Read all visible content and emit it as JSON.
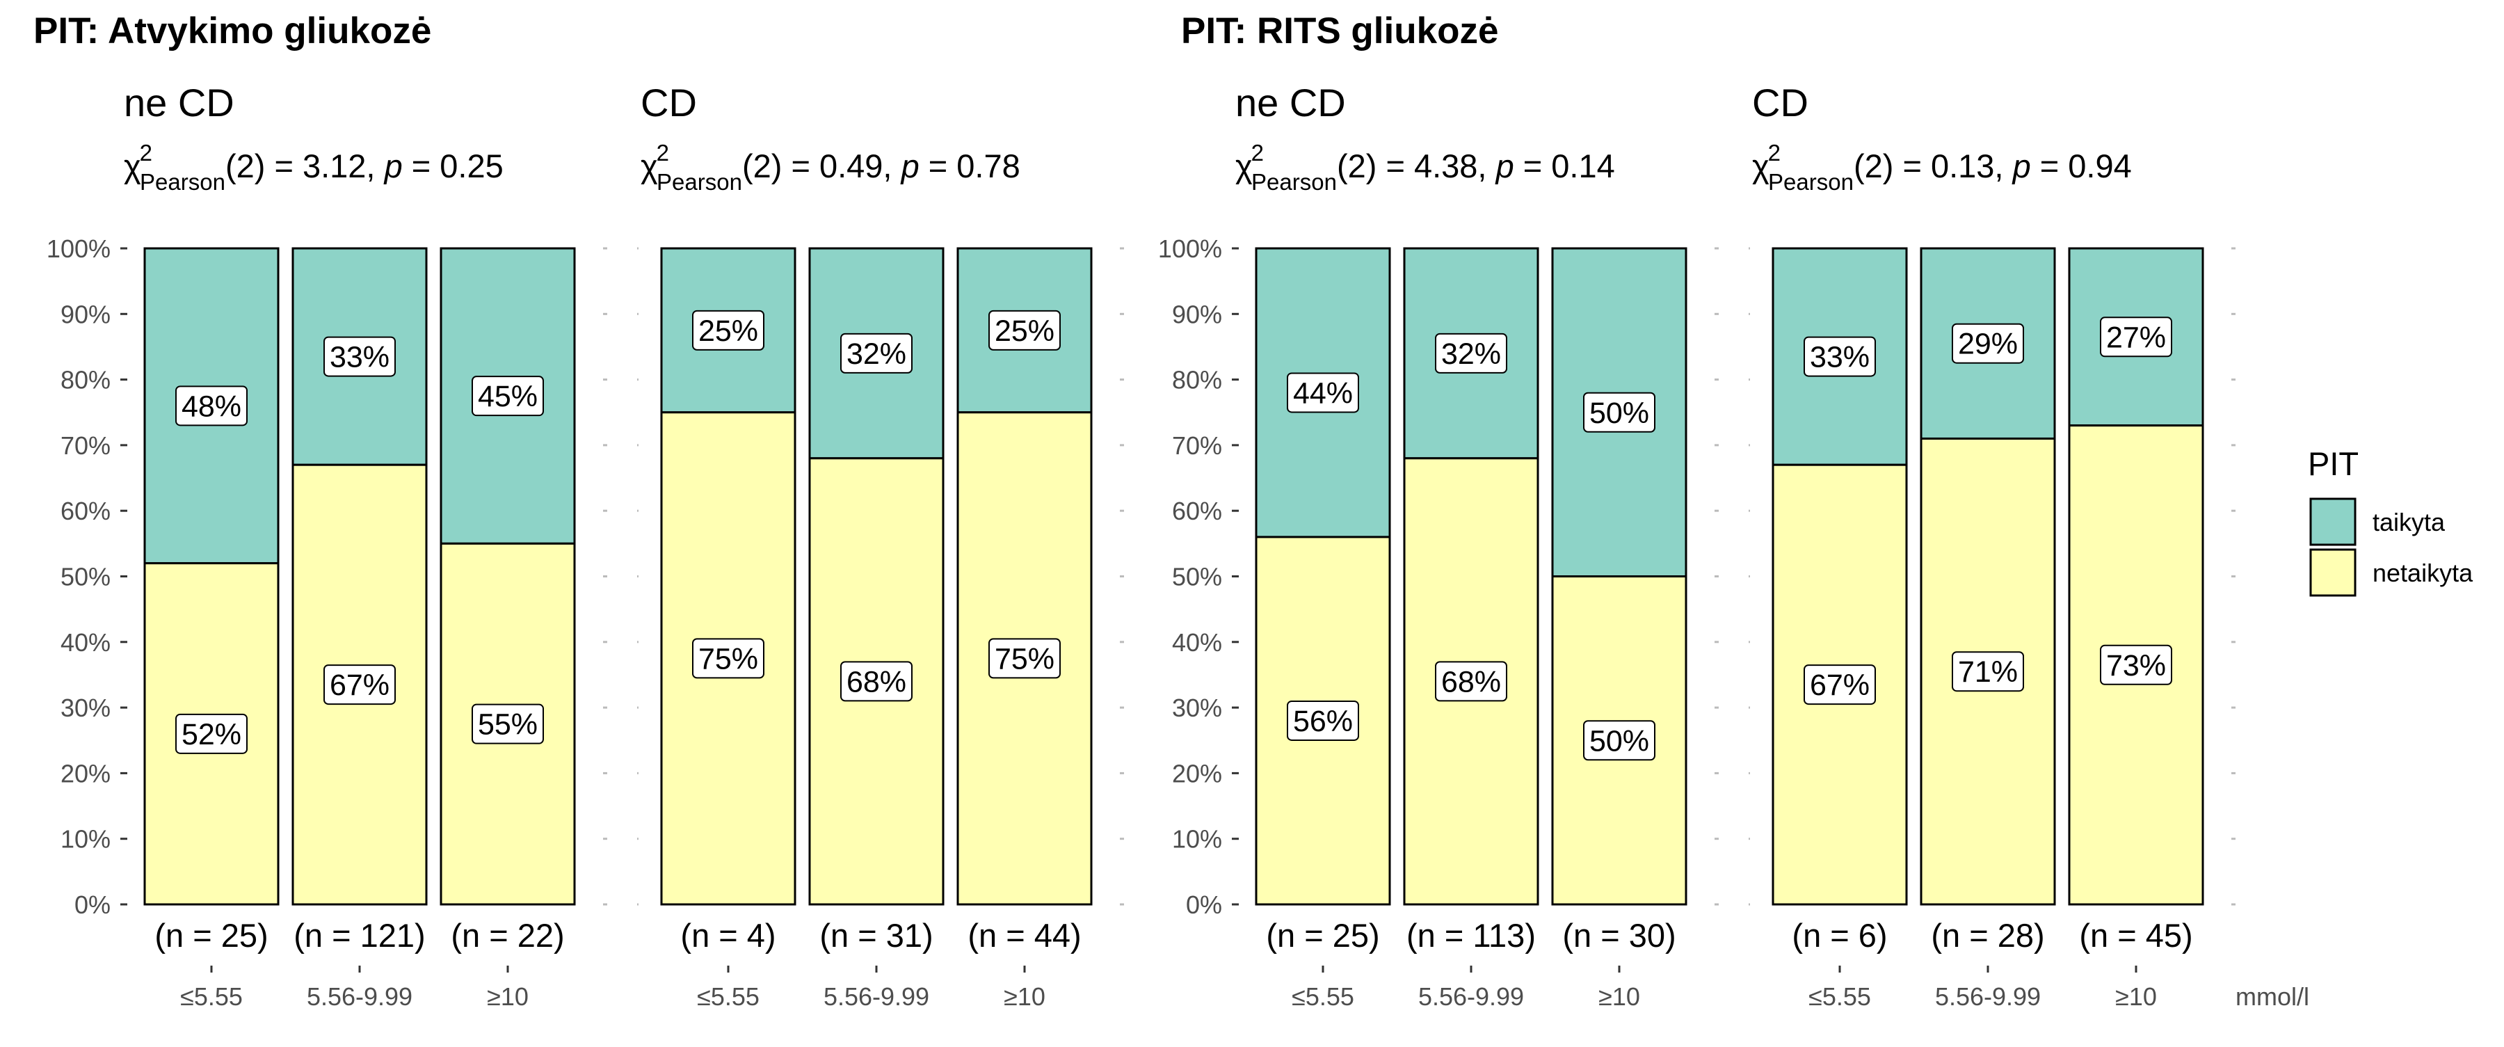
{
  "groups": [
    {
      "title": "PIT: Atvykimo gliukozė"
    },
    {
      "title": "PIT: RITS gliukozė"
    }
  ],
  "unit": "mmol/l",
  "legend": {
    "title": "PIT",
    "items": [
      {
        "label": "taikyta",
        "color": "#8DD3C7"
      },
      {
        "label": "netaikyta",
        "color": "#FFFFB3"
      }
    ]
  },
  "chart_data": [
    {
      "type": "bar",
      "stacked": true,
      "group_title": "PIT: Atvykimo gliukozė",
      "title": "ne CD",
      "stat": {
        "df": "2",
        "chi2": "3.12",
        "p": "0.25"
      },
      "categories": [
        "≤5.55",
        "5.56-9.99",
        "≥10"
      ],
      "counts": [
        "(n = 25)",
        "(n = 121)",
        "(n = 22)"
      ],
      "series": [
        {
          "name": "netaikyta",
          "values": [
            52,
            67,
            55
          ]
        },
        {
          "name": "taikyta",
          "values": [
            48,
            33,
            45
          ]
        }
      ],
      "ylim": [
        0,
        100
      ],
      "yticks": [
        "0%",
        "10%",
        "20%",
        "30%",
        "40%",
        "50%",
        "60%",
        "70%",
        "80%",
        "90%",
        "100%"
      ]
    },
    {
      "type": "bar",
      "stacked": true,
      "group_title": "PIT: Atvykimo gliukozė",
      "title": "CD",
      "stat": {
        "df": "2",
        "chi2": "0.49",
        "p": "0.78"
      },
      "categories": [
        "≤5.55",
        "5.56-9.99",
        "≥10"
      ],
      "counts": [
        "(n = 4)",
        "(n = 31)",
        "(n = 44)"
      ],
      "series": [
        {
          "name": "netaikyta",
          "values": [
            75,
            68,
            75
          ]
        },
        {
          "name": "taikyta",
          "values": [
            25,
            32,
            25
          ]
        }
      ],
      "ylim": [
        0,
        100
      ],
      "yticks": []
    },
    {
      "type": "bar",
      "stacked": true,
      "group_title": "PIT: RITS gliukozė",
      "title": "ne CD",
      "stat": {
        "df": "2",
        "chi2": "4.38",
        "p": "0.14"
      },
      "categories": [
        "≤5.55",
        "5.56-9.99",
        "≥10"
      ],
      "counts": [
        "(n = 25)",
        "(n = 113)",
        "(n = 30)"
      ],
      "series": [
        {
          "name": "netaikyta",
          "values": [
            56,
            68,
            50
          ]
        },
        {
          "name": "taikyta",
          "values": [
            44,
            32,
            50
          ]
        }
      ],
      "ylim": [
        0,
        100
      ],
      "yticks": [
        "0%",
        "10%",
        "20%",
        "30%",
        "40%",
        "50%",
        "60%",
        "70%",
        "80%",
        "90%",
        "100%"
      ]
    },
    {
      "type": "bar",
      "stacked": true,
      "group_title": "PIT: RITS gliukozė",
      "title": "CD",
      "stat": {
        "df": "2",
        "chi2": "0.13",
        "p": "0.94"
      },
      "categories": [
        "≤5.55",
        "5.56-9.99",
        "≥10"
      ],
      "counts": [
        "(n = 6)",
        "(n = 28)",
        "(n = 45)"
      ],
      "series": [
        {
          "name": "netaikyta",
          "values": [
            67,
            71,
            73
          ]
        },
        {
          "name": "taikyta",
          "values": [
            33,
            29,
            27
          ]
        }
      ],
      "ylim": [
        0,
        100
      ],
      "yticks": []
    }
  ]
}
